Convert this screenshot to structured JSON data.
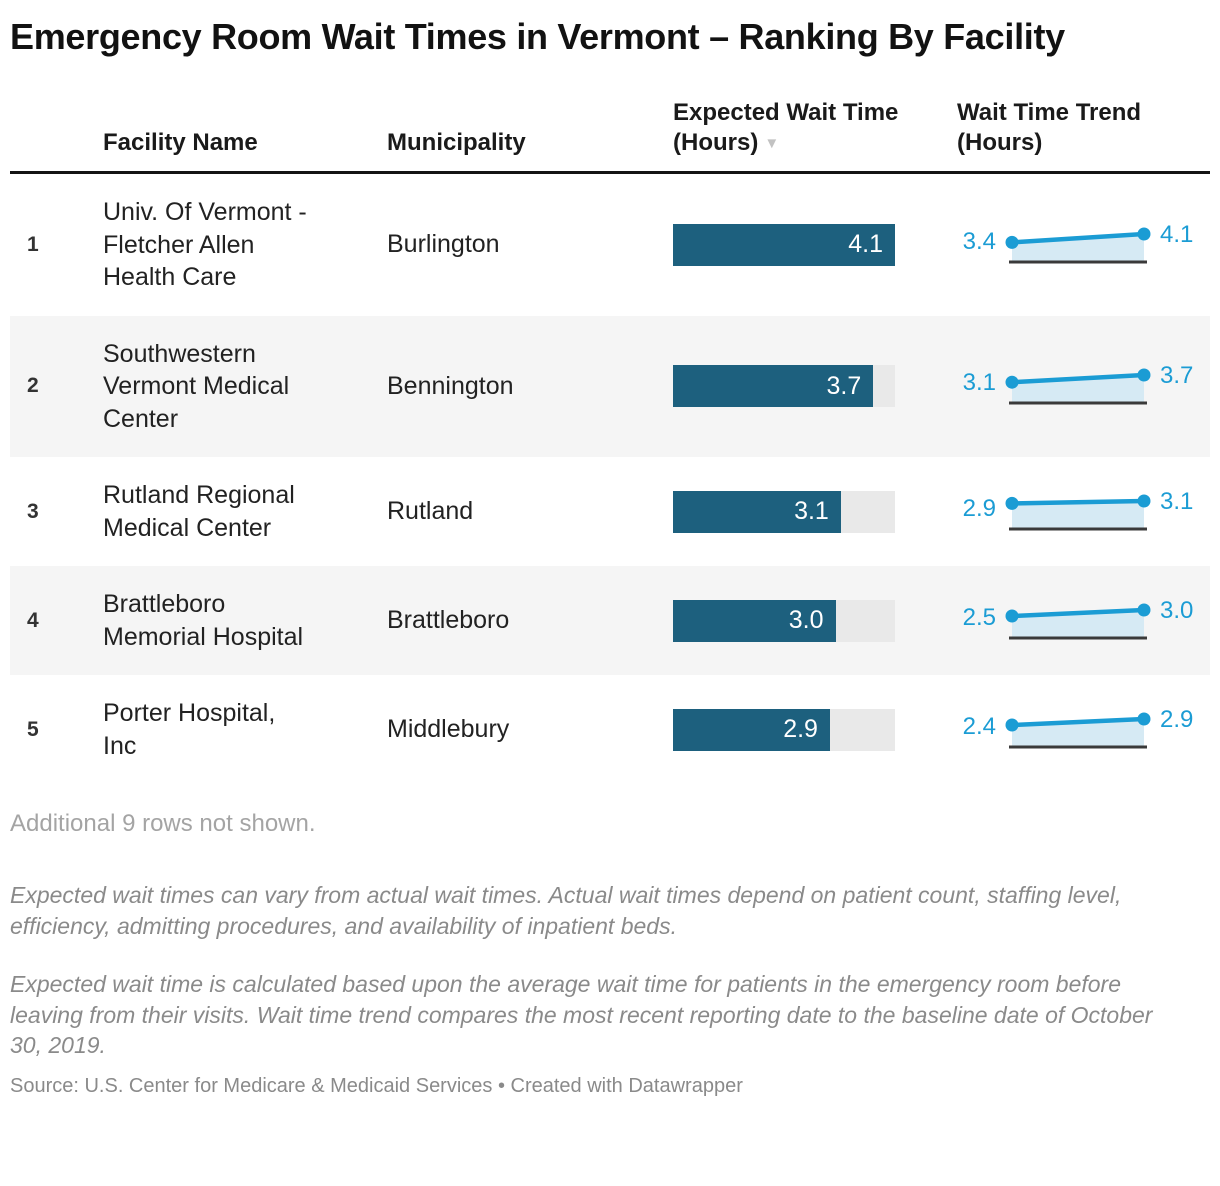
{
  "title": "Emergency Room Wait Times in Vermont – Ranking By Facility",
  "table": {
    "headers": {
      "facility": "Facility Name",
      "municipality": "Municipality",
      "wait": "Expected Wait Time (Hours)",
      "trend": "Wait Time Trend (Hours)",
      "sort_icon": "▼"
    },
    "bar_axis_max": 4.1,
    "rows": [
      {
        "rank": "1",
        "facility": "Univ. Of Vermont - Fletcher Allen Health Care",
        "municipality": "Burlington",
        "wait_label": "4.1",
        "wait_value": 4.1,
        "trend_start": 3.4,
        "trend_end": 4.1,
        "trend_start_label": "3.4",
        "trend_end_label": "4.1"
      },
      {
        "rank": "2",
        "facility": "Southwestern Vermont Medical Center",
        "municipality": "Bennington",
        "wait_label": "3.7",
        "wait_value": 3.7,
        "trend_start": 3.1,
        "trend_end": 3.7,
        "trend_start_label": "3.1",
        "trend_end_label": "3.7"
      },
      {
        "rank": "3",
        "facility": "Rutland Regional Medical Center",
        "municipality": "Rutland",
        "wait_label": "3.1",
        "wait_value": 3.1,
        "trend_start": 2.9,
        "trend_end": 3.1,
        "trend_start_label": "2.9",
        "trend_end_label": "3.1"
      },
      {
        "rank": "4",
        "facility": "Brattleboro Memorial Hospital",
        "municipality": "Brattleboro",
        "wait_label": "3.0",
        "wait_value": 3.0,
        "trend_start": 2.5,
        "trend_end": 3.0,
        "trend_start_label": "2.5",
        "trend_end_label": "3.0"
      },
      {
        "rank": "5",
        "facility": "Porter Hospital, Inc",
        "municipality": "Middlebury",
        "wait_label": "2.9",
        "wait_value": 2.9,
        "trend_start": 2.4,
        "trend_end": 2.9,
        "trend_start_label": "2.4",
        "trend_end_label": "2.9"
      }
    ],
    "more_rows_note": "Additional 9 rows not shown."
  },
  "chart_data": {
    "type": "table",
    "title": "Emergency Room Wait Times in Vermont – Ranking By Facility",
    "columns": [
      "Rank",
      "Facility Name",
      "Municipality",
      "Expected Wait Time (Hours)",
      "Wait Time Trend (Hours)"
    ],
    "rows": [
      {
        "rank": 1,
        "facility": "Univ. Of Vermont - Fletcher Allen Health Care",
        "municipality": "Burlington",
        "expected_wait_hours": 4.1,
        "trend_hours": [
          3.4,
          4.1
        ]
      },
      {
        "rank": 2,
        "facility": "Southwestern Vermont Medical Center",
        "municipality": "Bennington",
        "expected_wait_hours": 3.7,
        "trend_hours": [
          3.1,
          3.7
        ]
      },
      {
        "rank": 3,
        "facility": "Rutland Regional Medical Center",
        "municipality": "Rutland",
        "expected_wait_hours": 3.1,
        "trend_hours": [
          2.9,
          3.1
        ]
      },
      {
        "rank": 4,
        "facility": "Brattleboro Memorial Hospital",
        "municipality": "Brattleboro",
        "expected_wait_hours": 3.0,
        "trend_hours": [
          2.5,
          3.0
        ]
      },
      {
        "rank": 5,
        "facility": "Porter Hospital, Inc",
        "municipality": "Middlebury",
        "expected_wait_hours": 2.9,
        "trend_hours": [
          2.4,
          2.9
        ]
      }
    ],
    "bar_axis_range": [
      0,
      4.1
    ],
    "sorted_by": "Expected Wait Time (Hours), descending",
    "hidden_rows_note": "Additional 9 rows not shown.",
    "legend_position": "none",
    "grid": false
  },
  "footnotes": {
    "p1": "Expected wait times can vary from actual wait times. Actual wait times depend on patient count, staffing level, efficiency, admitting procedures, and availability of inpatient beds.",
    "p2": "Expected wait time is calculated based upon the average wait time for patients in the emergency room before leaving from their visits. Wait time trend compares the most recent reporting date to the baseline date of October 30, 2019."
  },
  "source": "Source: U.S. Center for Medicare & Medicaid Services • Created with Datawrapper",
  "colors": {
    "bar": "#1d607e",
    "bar_track": "#e9e9e9",
    "bar_value_text": "#ffffff",
    "spark_line": "#1b9cd4",
    "spark_fill": "#d6eaf4",
    "spark_baseline": "#3a3a3a",
    "trend_label": "#1b9cd4",
    "alt_row_bg": "#f5f5f5",
    "header_rule": "#141414",
    "sort_icon": "#c2c2c2"
  }
}
